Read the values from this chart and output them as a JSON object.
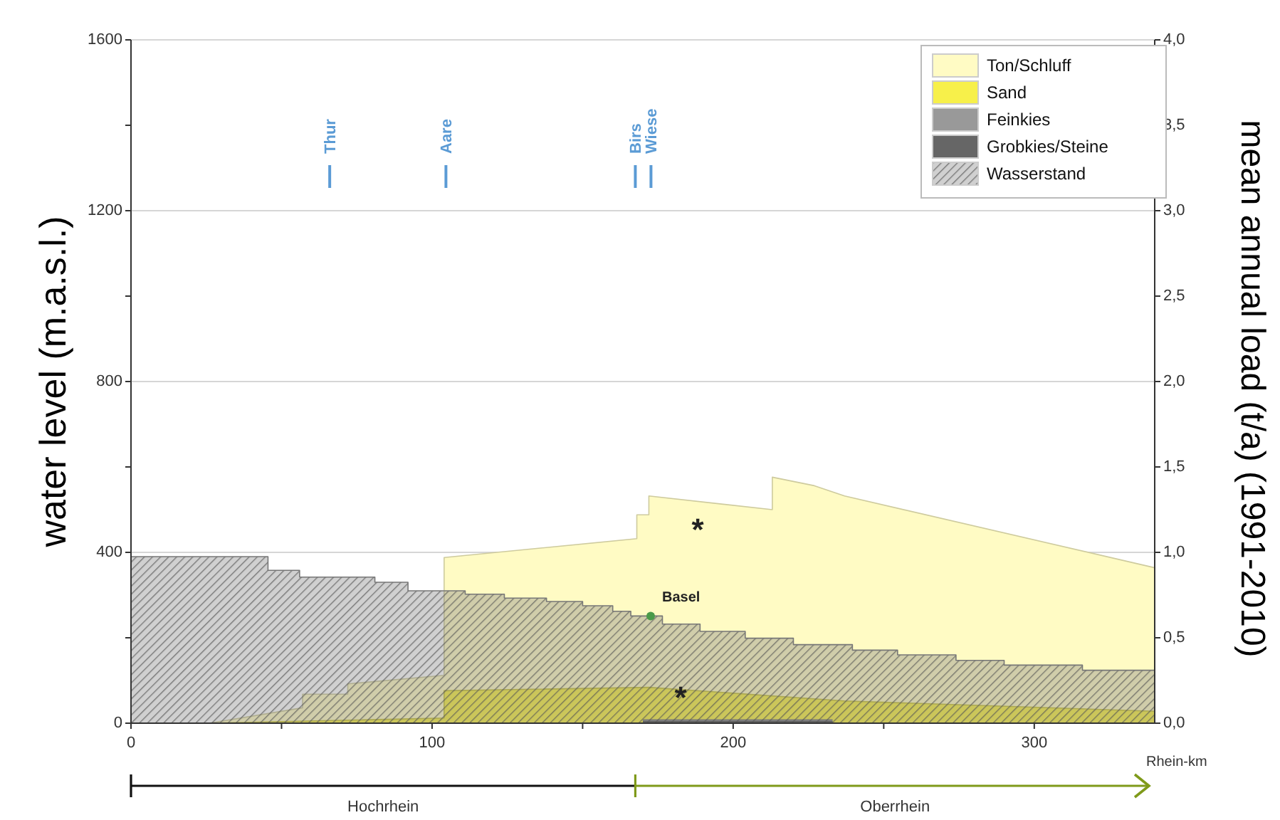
{
  "chart_data": {
    "type": "area",
    "xlabel": "Rhein-km",
    "ylabel": "water level (m.a.s.l.)",
    "y2label": "mean annual load (t/a) (1991-2010)",
    "xlim": [
      0,
      340
    ],
    "xticks": [
      0,
      {
        "value": 50,
        "label": null
      },
      100,
      {
        "value": 150,
        "label": null
      },
      200,
      {
        "value": 250,
        "label": null
      },
      300
    ],
    "ylim": [
      0,
      1600
    ],
    "yticks": [
      0,
      {
        "value": 200,
        "label": null
      },
      400,
      {
        "value": 600,
        "label": null
      },
      800,
      {
        "value": 1000,
        "label": null
      },
      1200,
      {
        "value": 1400,
        "label": null
      },
      1600
    ],
    "y2lim": [
      0,
      4
    ],
    "y2ticks": [
      {
        "value": 0,
        "label": "0,0"
      },
      {
        "value": 0.5,
        "label": "0,5"
      },
      {
        "value": 1,
        "label": "1,0"
      },
      {
        "value": 1.5,
        "label": "1,5"
      },
      {
        "value": 2,
        "label": "2,0"
      },
      {
        "value": 2.5,
        "label": "2,5"
      },
      {
        "value": 3,
        "label": "3,0"
      },
      {
        "value": 3.5,
        "label": "3,5"
      },
      {
        "value": 4,
        "label": "4,0"
      }
    ],
    "grid": "y",
    "legend": "top right",
    "series": [
      {
        "name": "Ton/Schluff",
        "color": "#fffbc4",
        "axis": "y2",
        "x": [
          26,
          57,
          57,
          72,
          72,
          104,
          104,
          168,
          168,
          172,
          172,
          213,
          213,
          227,
          237,
          340
        ],
        "values": [
          0,
          0.09,
          0.17,
          0.17,
          0.23,
          0.28,
          0.97,
          1.08,
          1.22,
          1.22,
          1.33,
          1.25,
          1.44,
          1.39,
          1.33,
          0.91
        ]
      },
      {
        "name": "Sand",
        "color": "#f7f04a",
        "axis": "y2",
        "x": [
          26,
          104,
          104,
          172,
          237,
          340
        ],
        "values": [
          0,
          0.03,
          0.19,
          0.21,
          0.13,
          0.07
        ]
      },
      {
        "name": "Feinkies",
        "color": "#999999",
        "axis": "y2",
        "x": [
          170,
          233
        ],
        "values": [
          0.02,
          0.02
        ]
      },
      {
        "name": "Grobkies/Steine",
        "color": "#666666",
        "axis": "y2",
        "x": [
          170,
          233
        ],
        "values": [
          0.01,
          0.01
        ]
      },
      {
        "name": "Wasserstand",
        "color": "#777777",
        "x": [
          0,
          45.5,
          45.5,
          56,
          56,
          81,
          81,
          92,
          92,
          111,
          111,
          124,
          124,
          138,
          138,
          150,
          150,
          160,
          160,
          166,
          166,
          176.5,
          176.5,
          189,
          189,
          204,
          204,
          220,
          220,
          239.6,
          239.6,
          254.6,
          254.6,
          274,
          274,
          290,
          290,
          316,
          316,
          340
        ],
        "values": [
          390,
          390,
          358,
          358,
          342,
          342,
          330,
          330,
          310,
          310,
          302,
          302,
          293,
          293,
          285,
          285,
          275,
          275,
          262,
          262,
          251,
          251,
          232,
          232,
          215,
          215,
          199,
          199,
          184,
          184,
          171,
          171,
          160,
          160,
          147,
          147,
          136,
          136,
          124,
          124
        ]
      },
      {
        "type": "scatter",
        "color": "#4a9a4a",
        "marker": "circle",
        "x": [
          172.6
        ],
        "values": [
          251
        ]
      }
    ],
    "ref_lines": [
      {
        "axis": "x",
        "value": 66,
        "label": "Thur",
        "color": "#5b9bd5"
      },
      {
        "axis": "x",
        "value": 104.6,
        "label": "Aare",
        "color": "#5b9bd5"
      },
      {
        "axis": "x",
        "value": 167.5,
        "label": "Birs",
        "color": "#5b9bd5"
      },
      {
        "axis": "x",
        "value": 172.7,
        "label": "Wiese",
        "color": "#5b9bd5"
      }
    ],
    "annotations": [
      "Basel",
      "*",
      "*",
      "Hochrhein",
      "Oberrhein"
    ]
  }
}
